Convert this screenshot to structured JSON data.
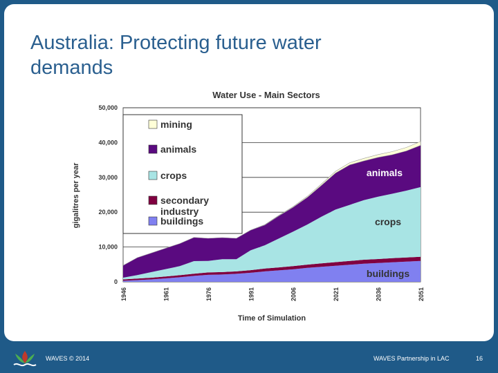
{
  "slide": {
    "title_line1": "Australia: Protecting future water",
    "title_line2": "demands"
  },
  "footer": {
    "left": "WAVES © 2014",
    "center": "WAVES Partnership in LAC",
    "page": "16"
  },
  "colors": {
    "background": "#1f5a88",
    "title": "#2a5f8f",
    "buildings": "#8080f0",
    "secondary": "#800040",
    "crops": "#a8e4e4",
    "animals": "#5a0a80",
    "mining": "#ffffd8"
  },
  "chart_data": {
    "type": "area",
    "stacked": true,
    "title": "Water Use - Main Sectors",
    "xlabel": "Time of Simulation",
    "ylabel": "gigalitres per year",
    "ylim": [
      0,
      50000
    ],
    "xlim": [
      1946,
      2051
    ],
    "xticks": [
      "1946",
      "1961",
      "1976",
      "1991",
      "2006",
      "2021",
      "2036",
      "2051"
    ],
    "yticks": [
      "0",
      "10,000",
      "20,000",
      "30,000",
      "40,000",
      "50,000"
    ],
    "grid": true,
    "legend_position": "top-left",
    "legend": [
      "mining",
      "animals",
      "crops",
      "secondary industry",
      "buildings"
    ],
    "x": [
      1946,
      1951,
      1956,
      1961,
      1966,
      1971,
      1976,
      1981,
      1986,
      1991,
      1996,
      2001,
      2006,
      2011,
      2016,
      2021,
      2026,
      2031,
      2036,
      2041,
      2046,
      2051
    ],
    "series": [
      {
        "name": "buildings",
        "color": "#8080f0",
        "values": [
          300,
          500,
          700,
          1000,
          1300,
          1700,
          2000,
          2100,
          2300,
          2600,
          3000,
          3300,
          3600,
          4000,
          4300,
          4600,
          4900,
          5200,
          5400,
          5600,
          5800,
          6000
        ]
      },
      {
        "name": "secondary industry",
        "color": "#800040",
        "values": [
          400,
          450,
          500,
          550,
          600,
          650,
          700,
          700,
          700,
          750,
          800,
          850,
          900,
          950,
          1000,
          1050,
          1100,
          1150,
          1150,
          1200,
          1200,
          1200
        ]
      },
      {
        "name": "crops",
        "color": "#a8e4e4",
        "values": [
          500,
          1000,
          1600,
          2100,
          2600,
          3600,
          3300,
          3700,
          3500,
          5700,
          6700,
          8300,
          9900,
          11500,
          13400,
          15100,
          16100,
          17100,
          17900,
          18500,
          19200,
          20000
        ]
      },
      {
        "name": "animals",
        "color": "#5a0a80",
        "values": [
          3500,
          5000,
          5500,
          6000,
          6500,
          6800,
          6500,
          6200,
          6000,
          5800,
          5800,
          6500,
          7000,
          7800,
          9000,
          10500,
          11500,
          11300,
          11300,
          11200,
          11400,
          12000
        ]
      },
      {
        "name": "mining",
        "color": "#ffffd8",
        "values": [
          0,
          0,
          0,
          0,
          0,
          0,
          0,
          0,
          0,
          0,
          100,
          150,
          200,
          300,
          400,
          500,
          600,
          700,
          800,
          900,
          1000,
          1100
        ]
      }
    ],
    "annotations": [
      "animals",
      "crops",
      "buildings"
    ]
  }
}
